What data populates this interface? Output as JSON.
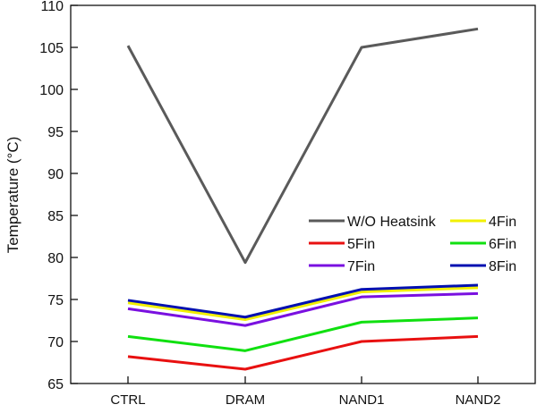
{
  "chart_data": {
    "type": "line",
    "ylabel": "Temperature (°C)",
    "xlabel": "",
    "categories": [
      "CTRL",
      "DRAM",
      "NAND1",
      "NAND2"
    ],
    "ylim": [
      65,
      110
    ],
    "yticks": [
      65,
      70,
      75,
      80,
      85,
      90,
      95,
      100,
      105,
      110
    ],
    "grid": false,
    "legend": "center-right",
    "series": [
      {
        "name": "W/O Heatsink",
        "color": "#5a5a5a",
        "values": [
          105.2,
          79.4,
          105.0,
          107.2
        ]
      },
      {
        "name": "4Fin",
        "color": "#f2f000",
        "values": [
          74.6,
          72.6,
          75.9,
          76.4
        ]
      },
      {
        "name": "5Fin",
        "color": "#e81010",
        "values": [
          68.2,
          66.7,
          70.0,
          70.6
        ]
      },
      {
        "name": "6Fin",
        "color": "#10e010",
        "values": [
          70.6,
          68.9,
          72.3,
          72.8
        ]
      },
      {
        "name": "7Fin",
        "color": "#7a10e0",
        "values": [
          73.9,
          71.9,
          75.3,
          75.7
        ]
      },
      {
        "name": "8Fin",
        "color": "#0010b0",
        "values": [
          74.9,
          72.9,
          76.2,
          76.7
        ]
      }
    ]
  }
}
